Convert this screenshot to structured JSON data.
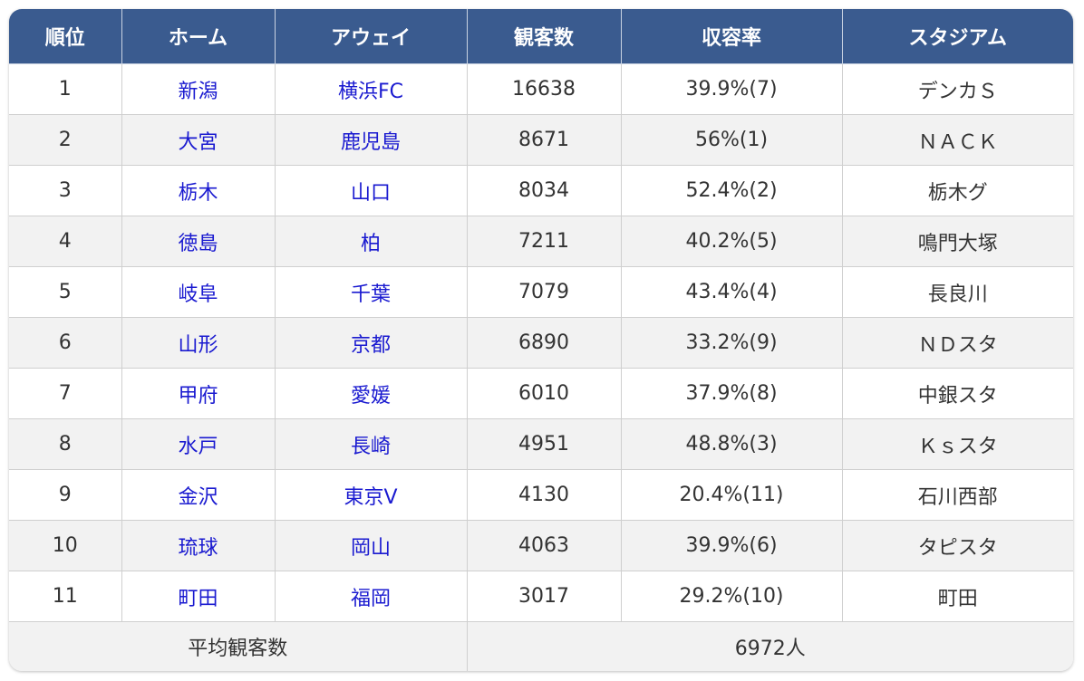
{
  "headers": [
    "順位",
    "ホーム",
    "アウェイ",
    "観客数",
    "収容率",
    "スタジアム"
  ],
  "rows": [
    {
      "rank": "1",
      "home": "新潟",
      "away": "横浜FC",
      "attendance": "16638",
      "capacity_rate": "39.9%(7)",
      "stadium": "デンカＳ"
    },
    {
      "rank": "2",
      "home": "大宮",
      "away": "鹿児島",
      "attendance": "8671",
      "capacity_rate": "56%(1)",
      "stadium": "ＮＡＣＫ"
    },
    {
      "rank": "3",
      "home": "栃木",
      "away": "山口",
      "attendance": "8034",
      "capacity_rate": "52.4%(2)",
      "stadium": "栃木グ"
    },
    {
      "rank": "4",
      "home": "徳島",
      "away": "柏",
      "attendance": "7211",
      "capacity_rate": "40.2%(5)",
      "stadium": "鳴門大塚"
    },
    {
      "rank": "5",
      "home": "岐阜",
      "away": "千葉",
      "attendance": "7079",
      "capacity_rate": "43.4%(4)",
      "stadium": "長良川"
    },
    {
      "rank": "6",
      "home": "山形",
      "away": "京都",
      "attendance": "6890",
      "capacity_rate": "33.2%(9)",
      "stadium": "ＮＤスタ"
    },
    {
      "rank": "7",
      "home": "甲府",
      "away": "愛媛",
      "attendance": "6010",
      "capacity_rate": "37.9%(8)",
      "stadium": "中銀スタ"
    },
    {
      "rank": "8",
      "home": "水戸",
      "away": "長崎",
      "attendance": "4951",
      "capacity_rate": "48.8%(3)",
      "stadium": "Ｋｓスタ"
    },
    {
      "rank": "9",
      "home": "金沢",
      "away": "東京V",
      "attendance": "4130",
      "capacity_rate": "20.4%(11)",
      "stadium": "石川西部"
    },
    {
      "rank": "10",
      "home": "琉球",
      "away": "岡山",
      "attendance": "4063",
      "capacity_rate": "39.9%(6)",
      "stadium": "タピスタ"
    },
    {
      "rank": "11",
      "home": "町田",
      "away": "福岡",
      "attendance": "3017",
      "capacity_rate": "29.2%(10)",
      "stadium": "町田"
    }
  ],
  "footer": {
    "label": "平均観客数",
    "value": "6972人"
  },
  "colors": {
    "header_bg": "#3a5b8f",
    "header_text": "#ffffff",
    "link_text": "#1a1ad0",
    "stripe_bg": "#f2f2f2"
  }
}
